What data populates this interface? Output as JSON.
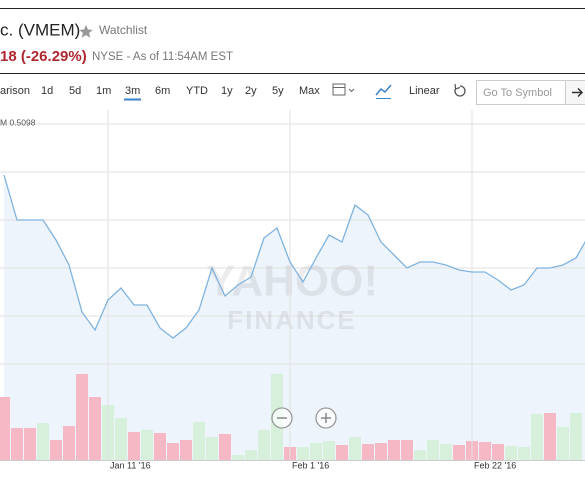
{
  "header": {
    "title": "c. (VMEM)",
    "watchlist": "Watchlist",
    "change": "18 (-26.29%)",
    "exchange": "NYSE - As of 11:54AM EST"
  },
  "toolbar": {
    "ranges": [
      "arison",
      "1d",
      "5d",
      "1m",
      "3m",
      "6m",
      "YTD",
      "1y",
      "2y",
      "5y",
      "Max"
    ],
    "active": "3m",
    "scale": "Linear",
    "search_placeholder": "Go To Symbol"
  },
  "chart_data": {
    "type": "line",
    "watermark": [
      "YAHOO!",
      "FINANCE"
    ],
    "categories": [
      null,
      null,
      null,
      null,
      null,
      null,
      null,
      null,
      "Jan 11 '16",
      null,
      null,
      null,
      null,
      null,
      null,
      null,
      null,
      null,
      null,
      null,
      null,
      null,
      "Feb 1 '16",
      null,
      null,
      null,
      null,
      null,
      null,
      null,
      null,
      null,
      null,
      null,
      null,
      null,
      "Feb 22 '16",
      null,
      null,
      null,
      null,
      null,
      null,
      null,
      null,
      null
    ],
    "series": [
      {
        "color": "#7fb3df",
        "values": [
          0.4894,
          0.4714,
          0.4714,
          0.4714,
          0.4634,
          0.4534,
          0.4346,
          0.4274,
          0.4394,
          0.4442,
          0.4374,
          0.4374,
          0.4282,
          0.4242,
          0.4282,
          0.4354,
          0.4522,
          0.441,
          0.4454,
          0.4486,
          0.4642,
          0.4682,
          0.4546,
          0.4466,
          0.4562,
          0.4654,
          0.4626,
          0.4774,
          0.4734,
          0.4626,
          0.4574,
          0.4522,
          0.4546,
          0.4546,
          0.4534,
          0.4514,
          0.4506,
          0.4506,
          0.4474,
          0.4434,
          0.4454,
          0.4522,
          0.4522,
          0.4534,
          0.4562,
          0.4654
        ]
      }
    ],
    "ylim": [
      0.3754,
      0.5154
    ],
    "yticks": [
      {
        "value": 0.5098,
        "label": "M 0.5098"
      },
      {
        "value": 0.4906,
        "label": null
      },
      {
        "value": 0.4714,
        "label": null
      },
      {
        "value": 0.4522,
        "label": null
      },
      {
        "value": 0.433,
        "label": null
      },
      {
        "value": 0.4138,
        "label": null
      }
    ],
    "grid": true,
    "area_color": "#eef4fb",
    "volume": {
      "values": [
        63,
        32,
        32,
        37,
        20,
        34,
        86,
        63,
        55,
        42,
        28,
        30,
        27,
        17,
        20,
        38,
        23,
        26,
        5,
        10,
        30,
        86,
        13,
        13,
        17,
        19,
        15,
        23,
        16,
        17,
        20,
        20,
        10,
        20,
        16,
        15,
        19,
        18,
        16,
        14,
        13,
        46,
        47,
        33,
        47,
        0
      ],
      "colors": [
        "#f5b8c4",
        "#f5b8c4",
        "#f5b8c4",
        "#d6f0dc",
        "#f5b8c4",
        "#f5b8c4",
        "#f5b8c4",
        "#f5b8c4",
        "#d6f0dc",
        "#d6f0dc",
        "#f5b8c4",
        "#d6f0dc",
        "#f5b8c4",
        "#f5b8c4",
        "#f5b8c4",
        "#d6f0dc",
        "#d6f0dc",
        "#f5b8c4",
        "#d6f0dc",
        "#d6f0dc",
        "#d6f0dc",
        "#d6f0dc",
        "#f5b8c4",
        "#d6f0dc",
        "#d6f0dc",
        "#d6f0dc",
        "#f5b8c4",
        "#d6f0dc",
        "#f5b8c4",
        "#f5b8c4",
        "#f5b8c4",
        "#f5b8c4",
        "#d6f0dc",
        "#d6f0dc",
        "#d6f0dc",
        "#f5b8c4",
        "#f5b8c4",
        "#f5b8c4",
        "#f5b8c4",
        "#d6f0dc",
        "#d6f0dc",
        "#d6f0dc",
        "#f5b8c4",
        "#d6f0dc",
        "#d6f0dc",
        "#d6f0dc"
      ],
      "lim": [
        0,
        100
      ]
    }
  }
}
